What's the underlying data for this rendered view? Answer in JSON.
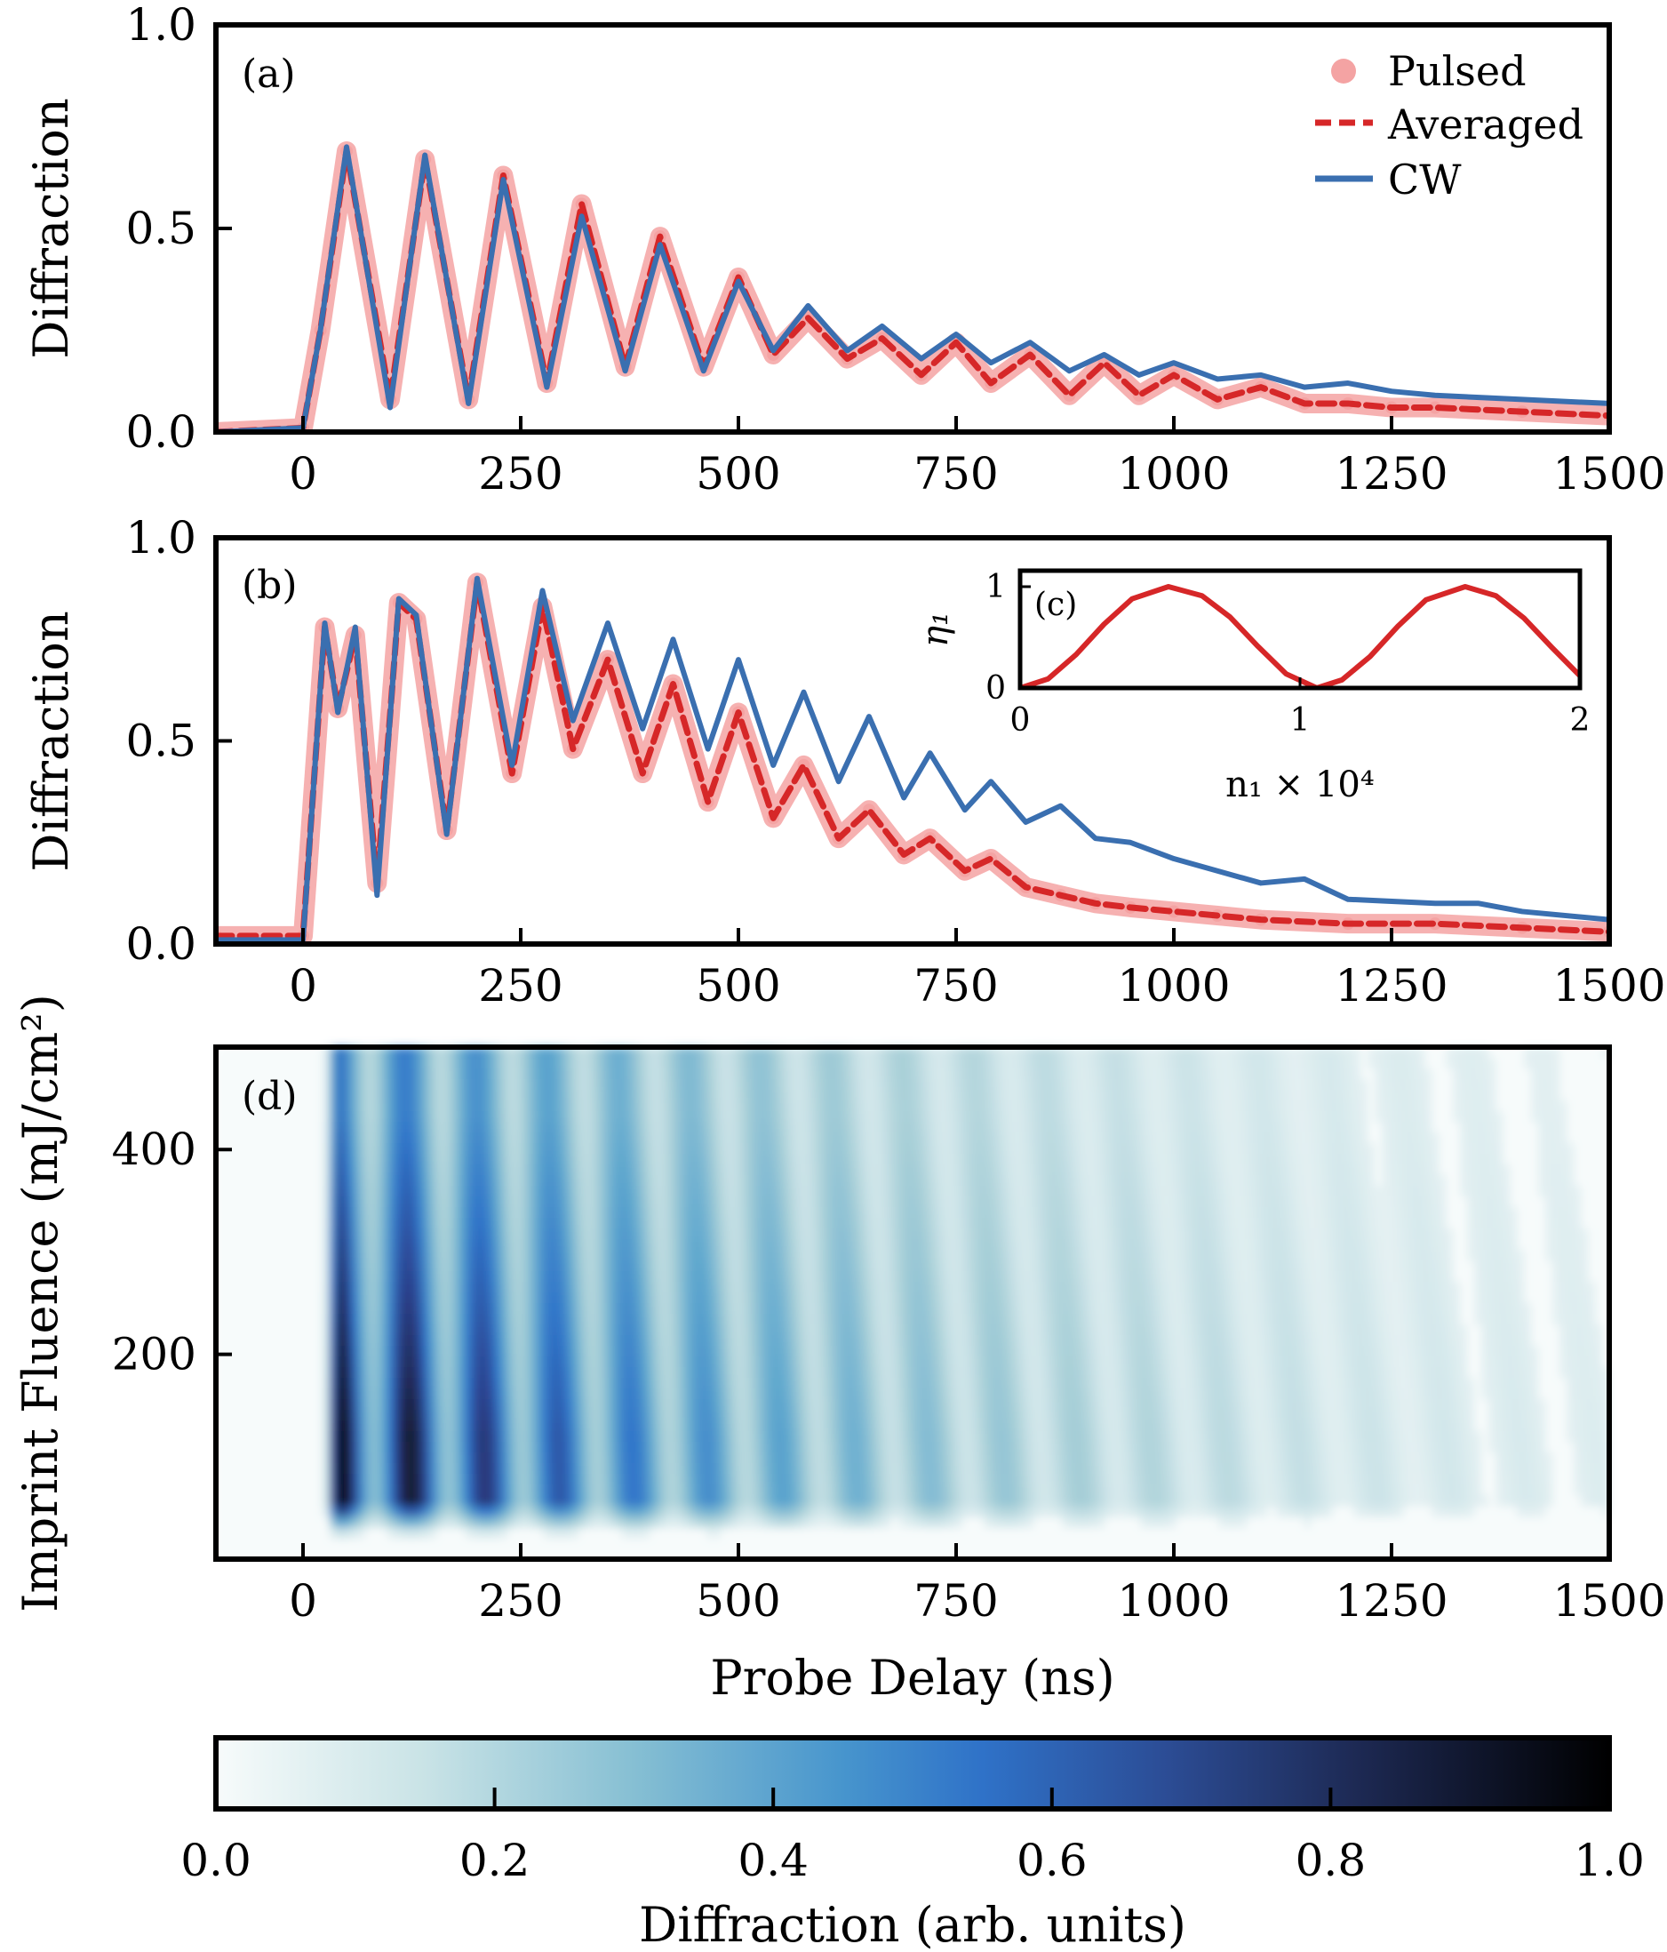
{
  "chart_data": [
    {
      "panel": "a",
      "panel_label": "(a)",
      "type": "line",
      "ylabel": "Diffraction",
      "xlim": [
        -100,
        1500
      ],
      "ylim": [
        0,
        1.0
      ],
      "xticks": [
        0,
        250,
        500,
        750,
        1000,
        1250,
        1500
      ],
      "xtick_labels": [
        "0",
        "250",
        "500",
        "750",
        "1000",
        "1250",
        "1500"
      ],
      "yticks": [
        0,
        0.5,
        1.0
      ],
      "ytick_labels": [
        "0.0",
        "0.5",
        "1.0"
      ],
      "legend": {
        "placement": "top-right",
        "entries": [
          "Pulsed",
          "Averaged",
          "CW"
        ]
      },
      "series": [
        {
          "name": "Pulsed",
          "style": "scatter",
          "color": "#f4a3a3",
          "x": [
            -100,
            0,
            20,
            50,
            100,
            140,
            190,
            230,
            280,
            320,
            370,
            410,
            460,
            500,
            540,
            580,
            625,
            665,
            710,
            750,
            790,
            835,
            880,
            920,
            960,
            1000,
            1050,
            1100,
            1150,
            1200,
            1250,
            1300,
            1400,
            1500
          ],
          "y": [
            0.0,
            0.01,
            0.25,
            0.69,
            0.08,
            0.67,
            0.08,
            0.63,
            0.12,
            0.56,
            0.16,
            0.48,
            0.16,
            0.38,
            0.19,
            0.28,
            0.18,
            0.23,
            0.14,
            0.22,
            0.12,
            0.19,
            0.09,
            0.17,
            0.09,
            0.14,
            0.08,
            0.11,
            0.07,
            0.07,
            0.06,
            0.06,
            0.05,
            0.04
          ]
        },
        {
          "name": "Averaged",
          "style": "dashed",
          "color": "#d62728",
          "x": [
            -100,
            0,
            20,
            50,
            100,
            140,
            190,
            230,
            280,
            320,
            370,
            410,
            460,
            500,
            540,
            580,
            625,
            665,
            710,
            750,
            790,
            835,
            880,
            920,
            960,
            1000,
            1050,
            1100,
            1150,
            1200,
            1250,
            1300,
            1400,
            1500
          ],
          "y": [
            0.0,
            0.01,
            0.25,
            0.69,
            0.08,
            0.67,
            0.08,
            0.63,
            0.12,
            0.56,
            0.16,
            0.48,
            0.16,
            0.38,
            0.19,
            0.28,
            0.18,
            0.23,
            0.14,
            0.22,
            0.12,
            0.19,
            0.09,
            0.17,
            0.09,
            0.14,
            0.08,
            0.11,
            0.07,
            0.07,
            0.06,
            0.06,
            0.05,
            0.04
          ]
        },
        {
          "name": "CW",
          "style": "solid",
          "color": "#3a6fb0",
          "x": [
            -100,
            0,
            20,
            50,
            100,
            140,
            190,
            230,
            280,
            320,
            370,
            410,
            460,
            500,
            540,
            580,
            625,
            665,
            710,
            750,
            790,
            835,
            880,
            920,
            960,
            1000,
            1050,
            1100,
            1150,
            1200,
            1250,
            1300,
            1400,
            1500
          ],
          "y": [
            0.0,
            0.01,
            0.25,
            0.7,
            0.06,
            0.68,
            0.07,
            0.62,
            0.11,
            0.53,
            0.15,
            0.46,
            0.15,
            0.37,
            0.2,
            0.31,
            0.2,
            0.26,
            0.18,
            0.24,
            0.17,
            0.22,
            0.15,
            0.19,
            0.14,
            0.17,
            0.13,
            0.14,
            0.11,
            0.12,
            0.1,
            0.09,
            0.08,
            0.07
          ]
        }
      ]
    },
    {
      "panel": "b",
      "panel_label": "(b)",
      "type": "line",
      "ylabel": "Diffraction",
      "xlim": [
        -100,
        1500
      ],
      "ylim": [
        0,
        1.0
      ],
      "xticks": [
        0,
        250,
        500,
        750,
        1000,
        1250,
        1500
      ],
      "xtick_labels": [
        "0",
        "250",
        "500",
        "750",
        "1000",
        "1250",
        "1500"
      ],
      "yticks": [
        0,
        0.5,
        1.0
      ],
      "ytick_labels": [
        "0.0",
        "0.5",
        "1.0"
      ],
      "series": [
        {
          "name": "Pulsed",
          "style": "scatter",
          "color": "#f4a3a3",
          "x": [
            -100,
            0,
            25,
            40,
            60,
            85,
            110,
            130,
            165,
            200,
            240,
            275,
            310,
            350,
            390,
            425,
            465,
            500,
            540,
            575,
            615,
            650,
            690,
            720,
            760,
            790,
            830,
            870,
            910,
            950,
            1000,
            1050,
            1100,
            1200,
            1300,
            1400,
            1500
          ],
          "y": [
            0.02,
            0.02,
            0.78,
            0.58,
            0.76,
            0.15,
            0.84,
            0.8,
            0.28,
            0.89,
            0.42,
            0.83,
            0.48,
            0.7,
            0.42,
            0.64,
            0.35,
            0.57,
            0.31,
            0.44,
            0.26,
            0.33,
            0.22,
            0.26,
            0.18,
            0.21,
            0.14,
            0.12,
            0.1,
            0.09,
            0.08,
            0.07,
            0.06,
            0.05,
            0.05,
            0.04,
            0.03
          ]
        },
        {
          "name": "Averaged",
          "style": "dashed",
          "color": "#d62728",
          "x": [
            -100,
            0,
            25,
            40,
            60,
            85,
            110,
            130,
            165,
            200,
            240,
            275,
            310,
            350,
            390,
            425,
            465,
            500,
            540,
            575,
            615,
            650,
            690,
            720,
            760,
            790,
            830,
            870,
            910,
            950,
            1000,
            1050,
            1100,
            1200,
            1300,
            1400,
            1500
          ],
          "y": [
            0.02,
            0.02,
            0.78,
            0.58,
            0.76,
            0.15,
            0.84,
            0.8,
            0.28,
            0.89,
            0.42,
            0.83,
            0.48,
            0.7,
            0.42,
            0.64,
            0.35,
            0.57,
            0.31,
            0.44,
            0.26,
            0.33,
            0.22,
            0.26,
            0.18,
            0.21,
            0.14,
            0.12,
            0.1,
            0.09,
            0.08,
            0.07,
            0.06,
            0.05,
            0.05,
            0.04,
            0.03
          ]
        },
        {
          "name": "CW",
          "style": "solid",
          "color": "#3a6fb0",
          "x": [
            -100,
            0,
            25,
            40,
            60,
            85,
            110,
            130,
            165,
            200,
            240,
            275,
            310,
            350,
            390,
            425,
            465,
            500,
            540,
            575,
            615,
            650,
            690,
            720,
            760,
            790,
            830,
            870,
            910,
            950,
            1000,
            1050,
            1100,
            1150,
            1200,
            1300,
            1350,
            1400,
            1500
          ],
          "y": [
            0.01,
            0.01,
            0.79,
            0.57,
            0.78,
            0.12,
            0.85,
            0.81,
            0.27,
            0.9,
            0.44,
            0.87,
            0.55,
            0.79,
            0.53,
            0.75,
            0.48,
            0.7,
            0.44,
            0.62,
            0.4,
            0.56,
            0.36,
            0.47,
            0.33,
            0.4,
            0.3,
            0.34,
            0.26,
            0.25,
            0.21,
            0.18,
            0.15,
            0.16,
            0.11,
            0.1,
            0.1,
            0.08,
            0.06
          ]
        }
      ]
    },
    {
      "panel": "c",
      "panel_label": "(c)",
      "type": "line",
      "ylabel": "η₁",
      "xlabel": "n₁ × 10⁴",
      "xlim": [
        0,
        2
      ],
      "ylim": [
        0,
        1
      ],
      "xticks": [
        0,
        1,
        2
      ],
      "xtick_labels": [
        "0",
        "1",
        "2"
      ],
      "yticks": [
        0,
        1
      ],
      "ytick_labels": [
        "0",
        "1"
      ],
      "series": [
        {
          "style": "solid",
          "color": "#d62728",
          "x": [
            0,
            0.1,
            0.2,
            0.3,
            0.4,
            0.53,
            0.65,
            0.75,
            0.85,
            0.95,
            1.06,
            1.15,
            1.25,
            1.35,
            1.45,
            1.59,
            1.7,
            1.8,
            1.9,
            2.0
          ],
          "y": [
            0,
            0.09,
            0.33,
            0.63,
            0.88,
            1.0,
            0.91,
            0.7,
            0.41,
            0.14,
            0,
            0.08,
            0.31,
            0.61,
            0.87,
            1.0,
            0.91,
            0.69,
            0.4,
            0.12
          ]
        }
      ]
    },
    {
      "panel": "d",
      "panel_label": "(d)",
      "type": "heatmap",
      "ylabel": "Imprint Fluence (mJ/cm²)",
      "xlabel": "Probe Delay (ns)",
      "xlim": [
        -100,
        1500
      ],
      "ylim": [
        0,
        500
      ],
      "xticks": [
        0,
        250,
        500,
        750,
        1000,
        1250,
        1500
      ],
      "xtick_labels": [
        "0",
        "250",
        "500",
        "750",
        "1000",
        "1250",
        "1500"
      ],
      "yticks": [
        200,
        400
      ],
      "ytick_labels": [
        "200",
        "400"
      ],
      "colormap": [
        "#f7fbfb",
        "#a9d0d8",
        "#5ea7ce",
        "#2f74c9",
        "#2c3f8a",
        "#161c33",
        "#000000"
      ],
      "colorbar": {
        "label": "Diffraction (arb. units)",
        "range": [
          0,
          1.0
        ],
        "ticks": [
          0,
          0.2,
          0.4,
          0.6,
          0.8,
          1.0
        ],
        "tick_labels": [
          "0.0",
          "0.2",
          "0.4",
          "0.6",
          "0.8",
          "1.0"
        ]
      }
    }
  ]
}
